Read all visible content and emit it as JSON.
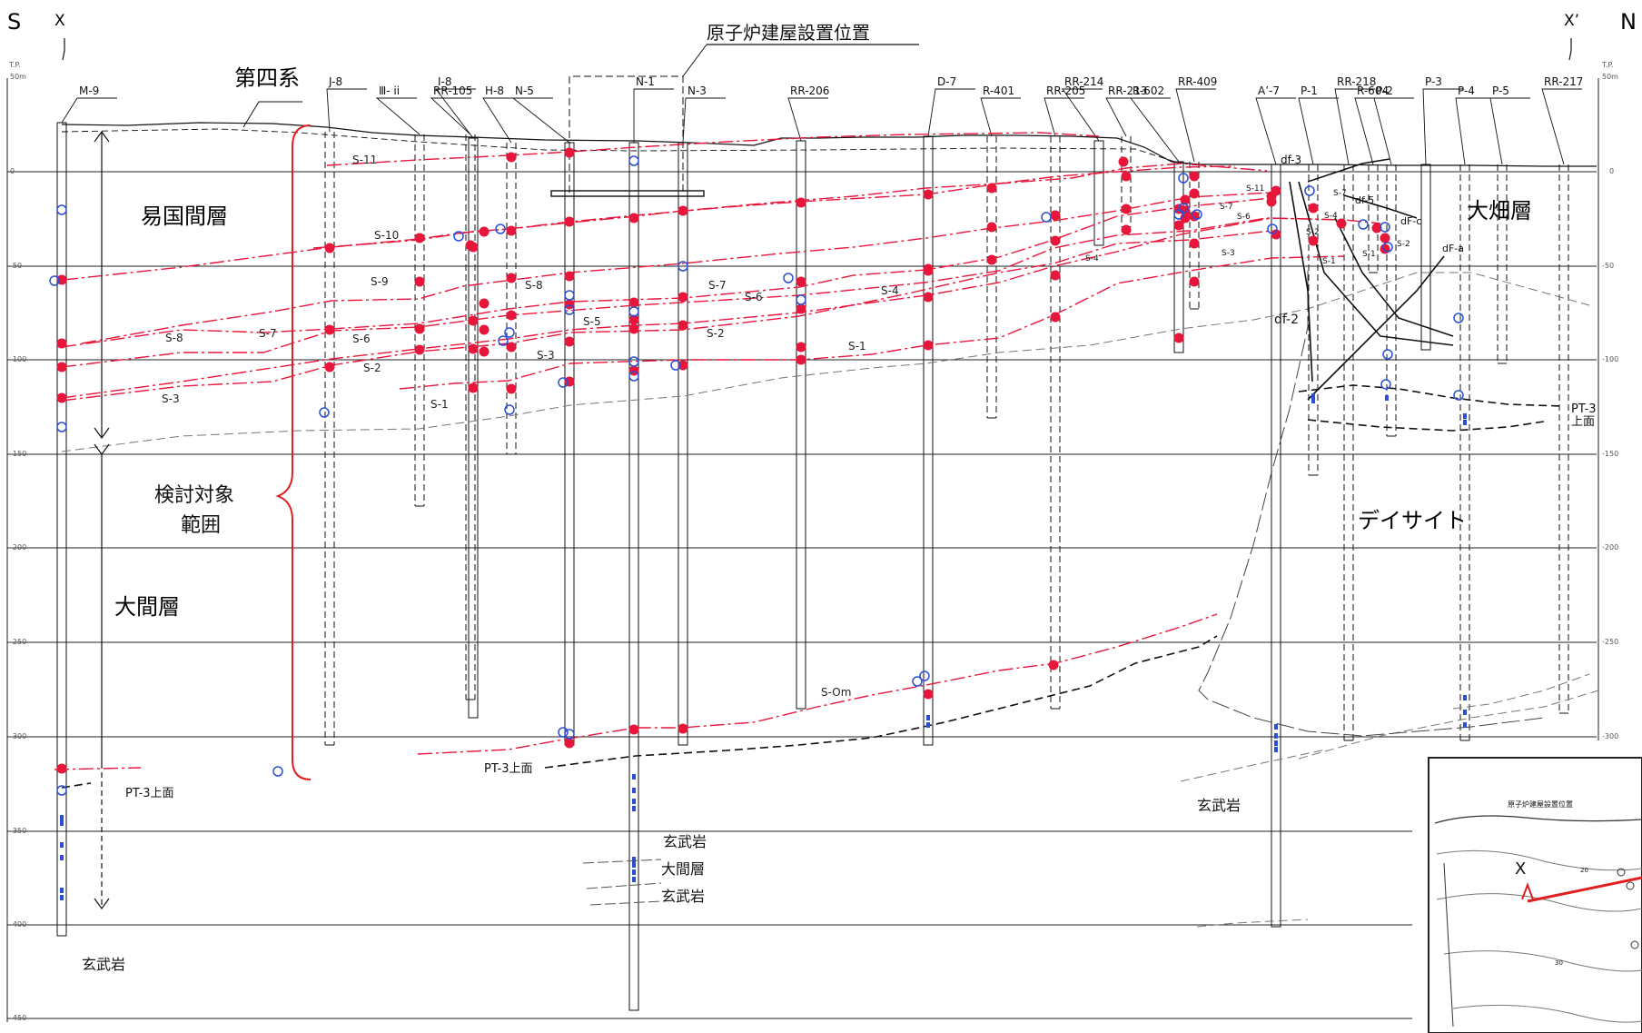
{
  "header": {
    "left_dir": "S",
    "left_mark": "X",
    "right_mark": "X’",
    "right_dir": "N",
    "reactor_label": "原子炉建屋設置位置"
  },
  "axis": {
    "unit_top": "T.P.",
    "left_ticks": [
      "50m",
      "0",
      "-50",
      "-100",
      "-150",
      "-200",
      "-250",
      "-300",
      "-350",
      "-400",
      "-450"
    ],
    "right_ticks": [
      "50m",
      "0",
      "-50",
      "-100",
      "-150",
      "-200",
      "-250",
      "-300"
    ]
  },
  "boreholes": [
    "M-9",
    "J-8",
    "Ⅲ- ii",
    "RR-105",
    "I-8",
    "H-8",
    "N-5",
    "N-1",
    "N-3",
    "RR-206",
    "D-7",
    "R-401",
    "RR-205",
    "RR-214",
    "RR-213",
    "R-602",
    "RR-409",
    "A’-7",
    "P-1",
    "RR-218",
    "R-604",
    "P-2",
    "P-3",
    "P-4",
    "P-5",
    "RR-217"
  ],
  "formations": {
    "quaternary": "第四系",
    "ekokuma": "易国間層",
    "oma": "大間層",
    "ohata": "大畑層",
    "dacite": "デイサイト",
    "target_line1": "検討対象",
    "target_line2": "範囲",
    "basalt": "玄武岩",
    "pt3_top": "PT-3上面",
    "pt3": "PT-3",
    "pt3_top_right": "上面"
  },
  "layers": [
    "S-11",
    "S-10",
    "S-9",
    "S-8",
    "S-7",
    "S-6",
    "S-5",
    "S-4",
    "S-3",
    "S-2",
    "S-1",
    "S-Om"
  ],
  "faults": [
    "df-3",
    "df-2",
    "df-5",
    "dF-c",
    "dF-a"
  ],
  "inset": {
    "map_title": "原子炉建屋設置位置",
    "mark": "X",
    "c1": "20",
    "c2": "30"
  },
  "colors": {
    "marker_red": "#e8163b",
    "marker_blue": "#2a4fd6",
    "bracket": "#e02020"
  }
}
